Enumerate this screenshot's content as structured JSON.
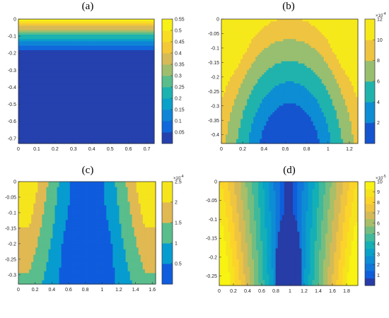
{
  "chart_data": [
    {
      "type": "contour",
      "title": "(a)",
      "colormap": "parula",
      "xlim": [
        0,
        0.74
      ],
      "ylim": [
        -0.73,
        0.0
      ],
      "xticks": [
        "0",
        "0.1",
        "0.2",
        "0.3",
        "0.4",
        "0.5",
        "0.6",
        "0.7"
      ],
      "yticks": [
        "0",
        "-0.1",
        "-0.2",
        "-0.3",
        "-0.4",
        "-0.5",
        "-0.6",
        "-0.7"
      ],
      "colorbar": {
        "min": 0.0,
        "max": 0.55,
        "ticks": [
          "0.05",
          "0.1",
          "0.15",
          "0.2",
          "0.25",
          "0.3",
          "0.35",
          "0.4",
          "0.45",
          "0.5",
          "0.55"
        ],
        "exponent": ""
      },
      "levels": 11,
      "pattern": "surface layer: value ~0.55 at y=0 decaying to ~0 by y=-0.3, flat below"
    },
    {
      "type": "contour",
      "title": "(b)",
      "colormap": "parula",
      "xlim": [
        0,
        1.28
      ],
      "ylim": [
        -0.43,
        0.0
      ],
      "xticks": [
        "0",
        "0.2",
        "0.4",
        "0.6",
        "0.8",
        "1",
        "1.2"
      ],
      "yticks": [
        "0",
        "-0.05",
        "-0.1",
        "-0.15",
        "-0.2",
        "-0.25",
        "-0.3",
        "-0.35",
        "-0.4"
      ],
      "colorbar": {
        "min": 0.0,
        "max": 12,
        "ticks": [
          "2",
          "4",
          "6",
          "8",
          "10",
          "12"
        ],
        "exponent": "-4"
      },
      "levels": 6,
      "pattern": "arch: high near top corners, minimum in lower centre near x=0.64"
    },
    {
      "type": "contour",
      "title": "(c)",
      "colormap": "parula",
      "xlim": [
        0,
        1.64
      ],
      "ylim": [
        -0.33,
        0.0
      ],
      "xticks": [
        "0",
        "0.2",
        "0.4",
        "0.6",
        "0.8",
        "1",
        "1.2",
        "1.4",
        "1.6"
      ],
      "yticks": [
        "0",
        "-0.05",
        "-0.1",
        "-0.15",
        "-0.2",
        "-0.25",
        "-0.3"
      ],
      "colorbar": {
        "min": 0.0,
        "max": 2.5,
        "ticks": [
          "0.5",
          "1",
          "1.5",
          "2",
          "2.5"
        ],
        "exponent": "-4"
      },
      "levels": 5,
      "pattern": "two high lobes at top corners, low column in centre near x=0.82"
    },
    {
      "type": "contour",
      "title": "(d)",
      "colormap": "parula",
      "xlim": [
        0,
        1.96
      ],
      "ylim": [
        -0.275,
        0.0
      ],
      "xticks": [
        "0",
        "0.2",
        "0.4",
        "0.6",
        "0.8",
        "1",
        "1.2",
        "1.4",
        "1.6",
        "1.8"
      ],
      "yticks": [
        "0",
        "-0.05",
        "-0.1",
        "-0.15",
        "-0.2",
        "-0.25"
      ],
      "colorbar": {
        "min": 0.0,
        "max": 10,
        "ticks": [
          "1",
          "2",
          "3",
          "4",
          "5",
          "6",
          "7",
          "8",
          "9",
          "10"
        ],
        "exponent": "-5"
      },
      "levels": 14,
      "pattern": "near-vertical bands: high at both side walls, minimum in centre near x=0.98"
    }
  ]
}
